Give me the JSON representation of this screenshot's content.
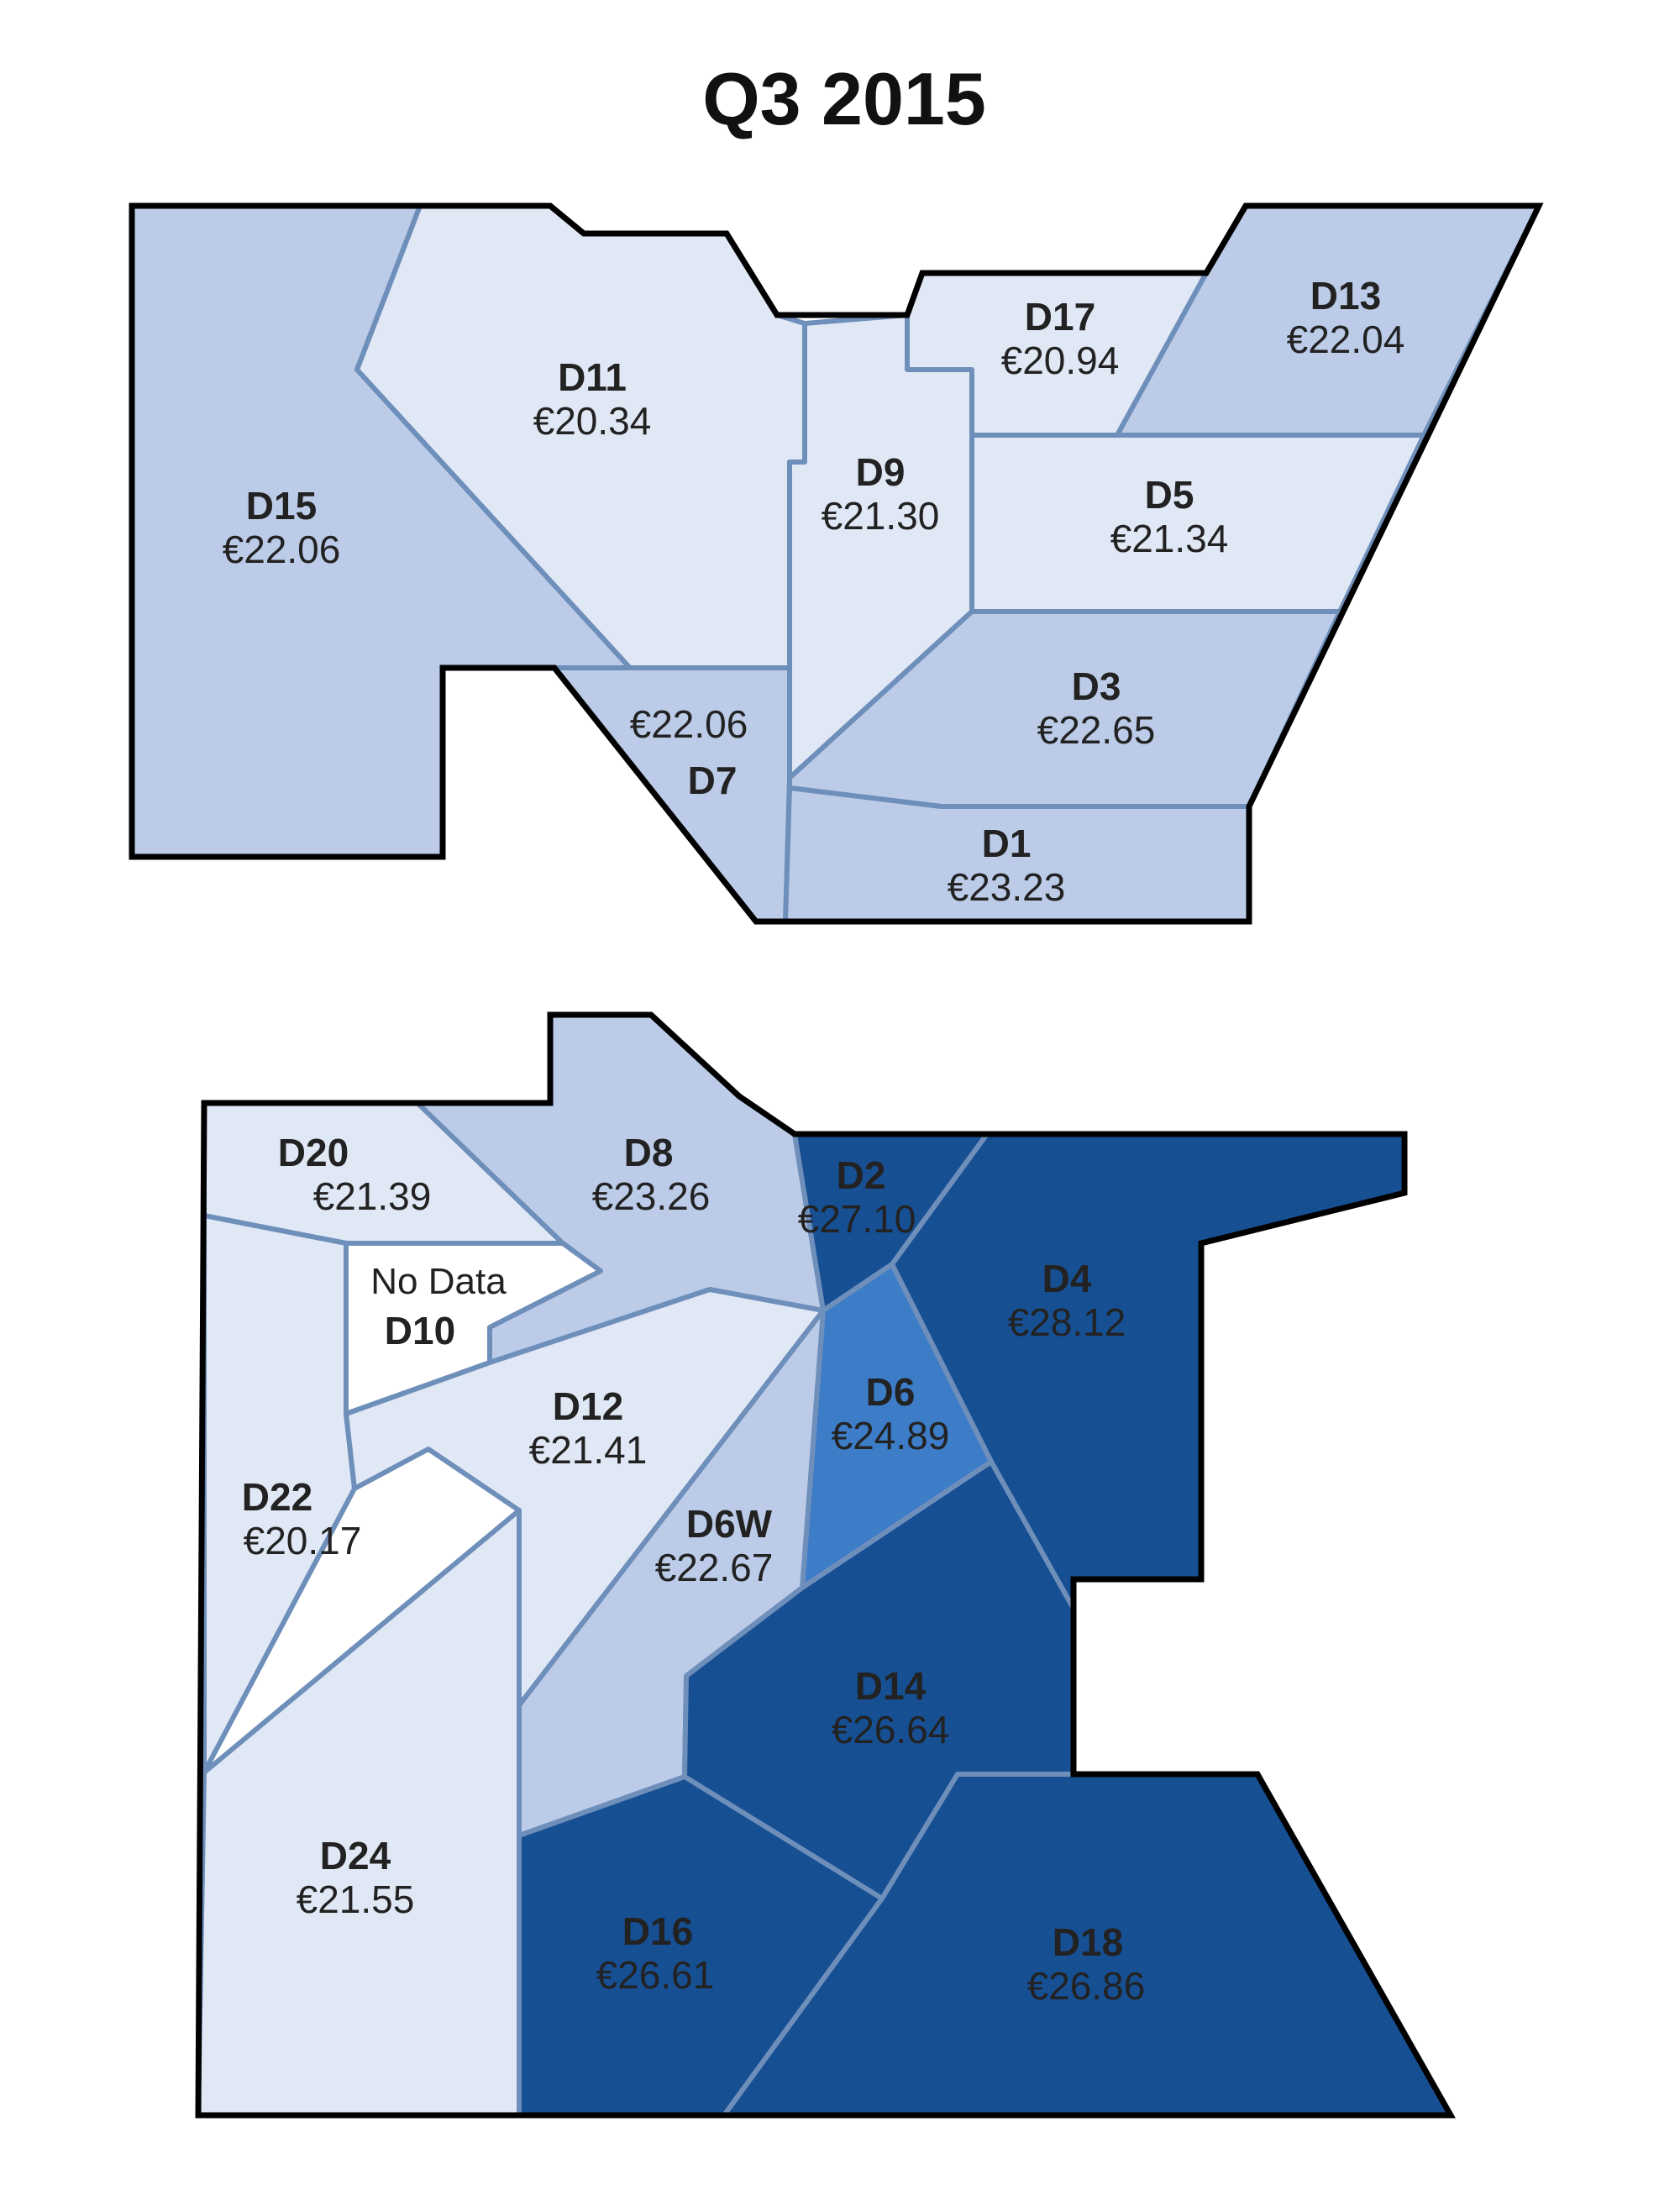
{
  "title": "Q3 2015",
  "colors": {
    "lightest": "#e1e8f5",
    "light": "#bccce8",
    "mid": "#3d7cc7",
    "dark": "#174f93",
    "nodata": "#ffffff",
    "border": "#6f8fbb",
    "outline": "#000000",
    "text": "#222222"
  },
  "no_data_label": "No Data",
  "districts": {
    "D1": {
      "code": "D1",
      "value": "€23.23",
      "shade": "light"
    },
    "D2": {
      "code": "D2",
      "value": "€27.10",
      "shade": "dark"
    },
    "D3": {
      "code": "D3",
      "value": "€22.65",
      "shade": "light"
    },
    "D4": {
      "code": "D4",
      "value": "€28.12",
      "shade": "dark"
    },
    "D5": {
      "code": "D5",
      "value": "€21.34",
      "shade": "lightest"
    },
    "D6": {
      "code": "D6",
      "value": "€24.89",
      "shade": "mid"
    },
    "D6W": {
      "code": "D6W",
      "value": "€22.67",
      "shade": "light"
    },
    "D7": {
      "code": "D7",
      "value": "€22.06",
      "shade": "light"
    },
    "D8": {
      "code": "D8",
      "value": "€23.26",
      "shade": "light"
    },
    "D9": {
      "code": "D9",
      "value": "€21.30",
      "shade": "lightest"
    },
    "D10": {
      "code": "D10",
      "value": "",
      "shade": "nodata"
    },
    "D11": {
      "code": "D11",
      "value": "€20.34",
      "shade": "lightest"
    },
    "D12": {
      "code": "D12",
      "value": "€21.41",
      "shade": "lightest"
    },
    "D13": {
      "code": "D13",
      "value": "€22.04",
      "shade": "light"
    },
    "D14": {
      "code": "D14",
      "value": "€26.64",
      "shade": "dark"
    },
    "D15": {
      "code": "D15",
      "value": "€22.06",
      "shade": "light"
    },
    "D16": {
      "code": "D16",
      "value": "€26.61",
      "shade": "dark"
    },
    "D17": {
      "code": "D17",
      "value": "€20.94",
      "shade": "lightest"
    },
    "D18": {
      "code": "D18",
      "value": "€26.86",
      "shade": "dark"
    },
    "D20": {
      "code": "D20",
      "value": "€21.39",
      "shade": "lightest"
    },
    "D22": {
      "code": "D22",
      "value": "€20.17",
      "shade": "lightest"
    },
    "D24": {
      "code": "D24",
      "value": "€21.55",
      "shade": "lightest"
    }
  }
}
